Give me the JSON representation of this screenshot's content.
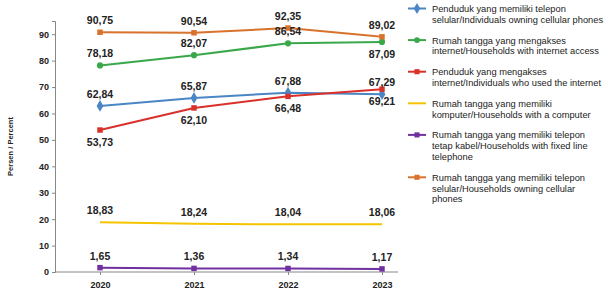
{
  "chart_data": {
    "type": "line",
    "y_label": "Persen / Percent",
    "categories": [
      "2020",
      "2021",
      "2022",
      "2023"
    ],
    "ylim": [
      0,
      95
    ],
    "yticks": [
      0,
      10,
      20,
      30,
      40,
      50,
      60,
      70,
      80,
      90
    ],
    "grid": false,
    "legend": "right",
    "data_labels": true,
    "series": [
      {
        "name": "Penduduk yang memiliki telepon selular/Individuals owning cellular phones",
        "color": "#4a86c5",
        "marker": "diamond",
        "values": [
          62.84,
          65.87,
          67.88,
          67.29
        ],
        "value_labels": [
          "62,84",
          "65,87",
          "67,88",
          "67,29"
        ]
      },
      {
        "name": "Rumah tangga yang mengakses internet/Households with internet access",
        "color": "#3aa84a",
        "marker": "circle",
        "values": [
          78.18,
          82.07,
          86.54,
          87.09
        ],
        "value_labels": [
          "78,18",
          "82,07",
          "86,54",
          "87,09"
        ]
      },
      {
        "name": "Penduduk yang mengakses internet/Individuals who used the internet",
        "color": "#d9302a",
        "marker": "square",
        "values": [
          53.73,
          62.1,
          66.48,
          69.21
        ],
        "value_labels": [
          "53,73",
          "62,10",
          "66,48",
          "69,21"
        ]
      },
      {
        "name": "Rumah tangga yang memiliki komputer/Households with a computer",
        "color": "#f5c400",
        "marker": "none",
        "values": [
          18.83,
          18.24,
          18.04,
          18.06
        ],
        "value_labels": [
          "18,83",
          "18,24",
          "18,04",
          "18,06"
        ]
      },
      {
        "name": "Rumah tangga yang memiliki telepon tetap kabel/Households with fixed line telephone",
        "color": "#7030a0",
        "marker": "square",
        "values": [
          1.65,
          1.36,
          1.34,
          1.17
        ],
        "value_labels": [
          "1,65",
          "1,36",
          "1,34",
          "1,17"
        ]
      },
      {
        "name": "Rumah tangga yang memiliki telepon selular/Households owning cellular phones",
        "color": "#d8722c",
        "marker": "square",
        "values": [
          90.75,
          90.54,
          92.35,
          89.02
        ],
        "value_labels": [
          "90,75",
          "90,54",
          "92,35",
          "89,02"
        ]
      }
    ]
  }
}
